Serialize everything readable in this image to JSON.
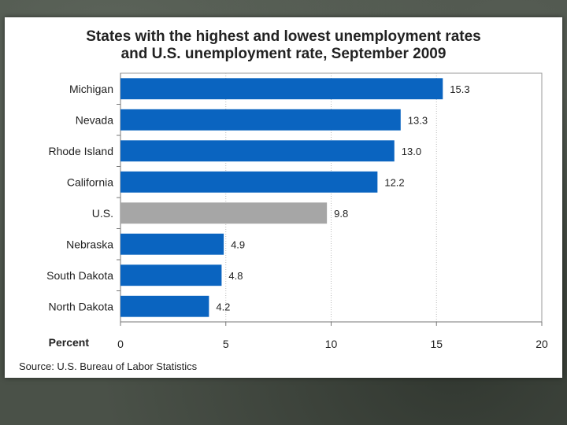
{
  "chart_data": {
    "type": "bar",
    "orientation": "horizontal",
    "title_line1": "States with the highest and lowest unemployment rates",
    "title_line2": "and U.S. unemployment rate, September 2009",
    "categories": [
      "Michigan",
      "Nevada",
      "Rhode Island",
      "California",
      "U.S.",
      "Nebraska",
      "South Dakota",
      "North Dakota"
    ],
    "values": [
      15.3,
      13.3,
      13.0,
      12.2,
      9.8,
      4.9,
      4.8,
      4.2
    ],
    "value_labels": [
      "15.3",
      "13.3",
      "13.0",
      "12.2",
      "9.8",
      "4.9",
      "4.8",
      "4.2"
    ],
    "xlabel": "Percent",
    "xlim": [
      0,
      20
    ],
    "xticks": [
      "0",
      "5",
      "10",
      "15",
      "20"
    ],
    "grid": true,
    "colors": {
      "bar": "#0a64c0",
      "highlight_bar": "#a6a6a6",
      "highlight_category": "U.S."
    },
    "source": "Source: U.S. Bureau of Labor Statistics"
  }
}
